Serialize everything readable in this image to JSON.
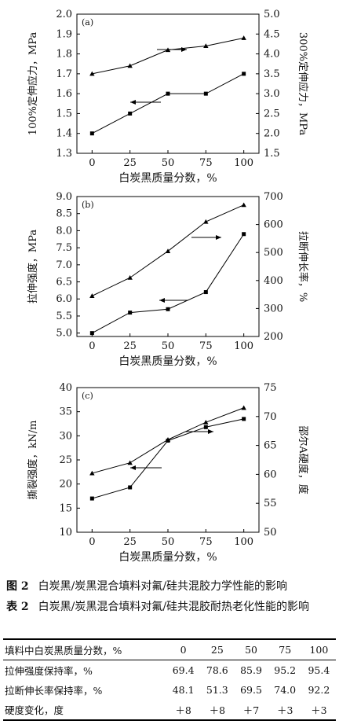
{
  "chart_data": [
    {
      "type": "line",
      "panel_label": "(a)",
      "xlabel": "白炭黑质量分数，%",
      "ylabel_left": "100%定伸应力，MPa",
      "ylabel_right": "300%定伸应力，MPa",
      "x": [
        0,
        25,
        50,
        75,
        100
      ],
      "x_ticks": [
        "0",
        "25",
        "50",
        "75",
        "100"
      ],
      "ylim_left": [
        1.3,
        2.0
      ],
      "yticks_left": [
        "1.3",
        "1.4",
        "1.5",
        "1.6",
        "1.7",
        "1.8",
        "1.9",
        "2.0"
      ],
      "ylim_right": [
        1.5,
        5.0
      ],
      "yticks_right": [
        "1.5",
        "2.0",
        "2.5",
        "3.0",
        "3.5",
        "4.0",
        "4.5",
        "5.0"
      ],
      "series": [
        {
          "axis": "left",
          "marker": "square",
          "values": [
            1.4,
            1.5,
            1.6,
            1.6,
            1.7
          ]
        },
        {
          "axis": "right",
          "marker": "triangle",
          "values": [
            3.5,
            3.7,
            4.1,
            4.2,
            4.4
          ]
        }
      ]
    },
    {
      "type": "line",
      "panel_label": "(b)",
      "xlabel": "白炭黑质量分数，%",
      "ylabel_left": "拉伸强度，MPa",
      "ylabel_right": "拉断伸长率，%",
      "x": [
        0,
        25,
        50,
        75,
        100
      ],
      "x_ticks": [
        "0",
        "25",
        "50",
        "75",
        "100"
      ],
      "ylim_left": [
        4.9,
        9.0
      ],
      "yticks_left": [
        "5.0",
        "5.5",
        "6.0",
        "6.5",
        "7.0",
        "7.5",
        "8.0",
        "8.5",
        "9.0"
      ],
      "ylim_right": [
        200,
        700
      ],
      "yticks_right": [
        "200",
        "300",
        "400",
        "500",
        "600",
        "700"
      ],
      "series": [
        {
          "axis": "left",
          "marker": "square",
          "values": [
            5.0,
            5.6,
            5.7,
            6.2,
            7.9
          ]
        },
        {
          "axis": "right",
          "marker": "triangle",
          "values": [
            345,
            410,
            505,
            610,
            670
          ]
        }
      ]
    },
    {
      "type": "line",
      "panel_label": "(c)",
      "xlabel": "白炭黑质量分数，%",
      "ylabel_left": "撕裂强度，kN/m",
      "ylabel_right": "邵尔A硬度，度",
      "x": [
        0,
        25,
        50,
        75,
        100
      ],
      "x_ticks": [
        "0",
        "25",
        "50",
        "75",
        "100"
      ],
      "ylim_left": [
        10,
        40
      ],
      "yticks_left": [
        "10",
        "15",
        "20",
        "25",
        "30",
        "35",
        "40"
      ],
      "ylim_right": [
        50,
        75
      ],
      "yticks_right": [
        "50",
        "55",
        "60",
        "65",
        "70",
        "75"
      ],
      "series": [
        {
          "axis": "left",
          "marker": "square",
          "values": [
            17,
            19.3,
            29,
            31.8,
            33.5
          ]
        },
        {
          "axis": "right",
          "marker": "triangle",
          "values": [
            60.2,
            62,
            66,
            69,
            71.5
          ]
        }
      ]
    }
  ],
  "figure_caption": {
    "label": "图 2",
    "text": "白炭黑/炭黑混合填料对氟/硅共混胶力学性能的影响"
  },
  "table_caption": {
    "label": "表 2",
    "text": "白炭黑/炭黑混合填料对氟/硅共混胶耐热老化性能的影响"
  },
  "table": {
    "header": [
      "填料中白炭黑质量分数，%",
      "0",
      "25",
      "50",
      "75",
      "100"
    ],
    "rows": [
      [
        "拉伸强度保持率，%",
        "69.4",
        "78.6",
        "85.9",
        "95.2",
        "95.4"
      ],
      [
        "拉断伸长率保持率，%",
        "48.1",
        "51.3",
        "69.5",
        "74.0",
        "92.2"
      ],
      [
        "硬度变化，度",
        "＋8",
        "＋8",
        "＋7",
        "＋3",
        "＋3"
      ]
    ]
  }
}
